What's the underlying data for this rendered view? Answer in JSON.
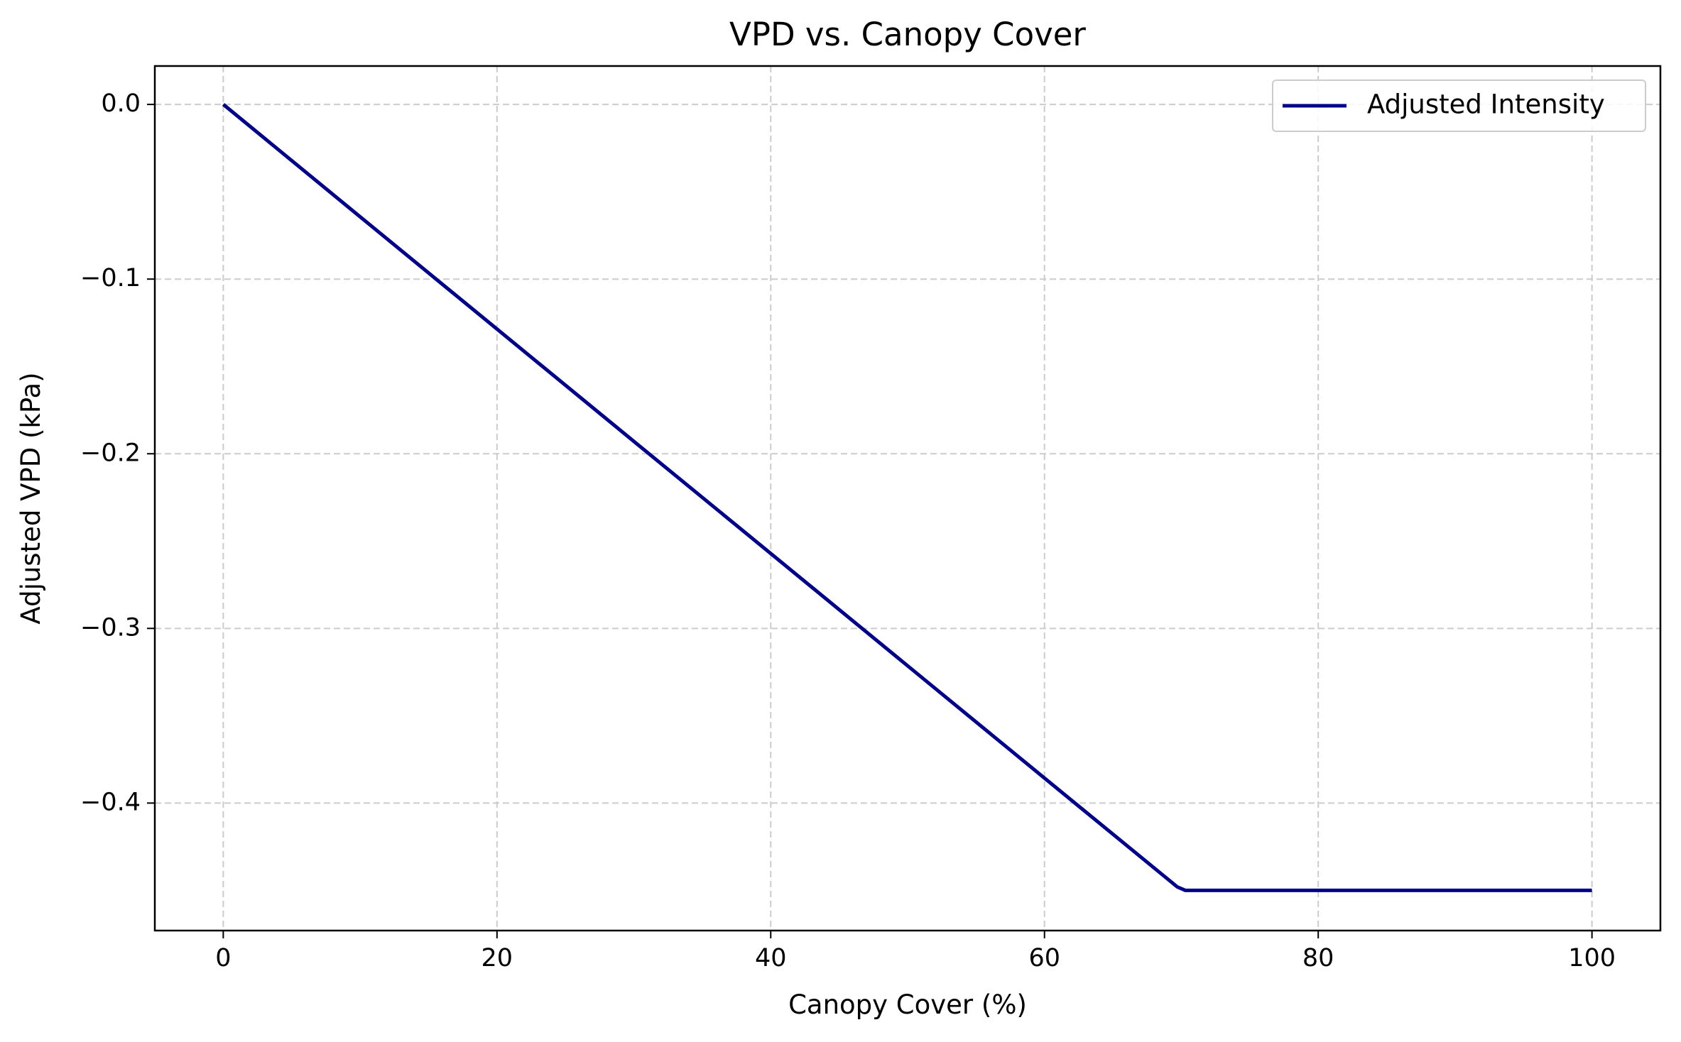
{
  "chart_data": {
    "type": "line",
    "title": "VPD vs. Canopy Cover",
    "xlabel": "Canopy Cover (%)",
    "ylabel": "Adjusted VPD (kPa)",
    "xlim": [
      -5,
      105
    ],
    "ylim": [
      -0.473,
      0.022
    ],
    "x_ticks": [
      0,
      20,
      40,
      60,
      80,
      100
    ],
    "x_tick_labels": [
      "0",
      "20",
      "40",
      "60",
      "80",
      "100"
    ],
    "y_ticks": [
      0.0,
      -0.1,
      -0.2,
      -0.3,
      -0.4
    ],
    "y_tick_labels": [
      "0.0",
      "−0.1",
      "−0.2",
      "−0.3",
      "−0.4"
    ],
    "grid": true,
    "legend_position": "top-right",
    "series": [
      {
        "name": "Adjusted Intensity",
        "color": "#00008b",
        "x": [
          0,
          10,
          20,
          30,
          40,
          50,
          60,
          69.7,
          70.3,
          80,
          90,
          100
        ],
        "y": [
          0.0,
          -0.0643,
          -0.1286,
          -0.1929,
          -0.2571,
          -0.3214,
          -0.3857,
          -0.448,
          -0.45,
          -0.45,
          -0.45,
          -0.45
        ]
      }
    ]
  }
}
